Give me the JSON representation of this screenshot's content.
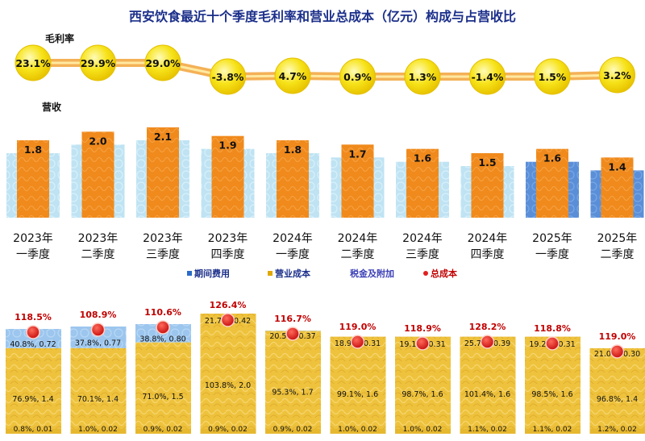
{
  "title": "西安饮食最近十个季度毛利率和营业总成本（亿元）构成与占营收比",
  "labels": {
    "margin": "毛利率",
    "revenue": "营收"
  },
  "legend": [
    {
      "label": "期间费用",
      "color": "#2a6cc7"
    },
    {
      "label": "营业成本",
      "color": "#e0a800"
    },
    {
      "label": "税金及附加",
      "color": "#3b3fb5"
    },
    {
      "label": "总成本",
      "color": "#e02020"
    }
  ],
  "colors": {
    "bubble": "#f7e31a",
    "bar_orange": "#f08a1c",
    "bar_back_light": "#bfe3f3",
    "bar_back_blue": "#5a8fd8",
    "cost_gold": "#eec23c",
    "cost_blue": "#9cc6ee",
    "total_red": "#d8201a",
    "label_red": "#c00000",
    "arrow": "#f2a33a"
  },
  "chart_data": {
    "type": "bar",
    "categories": [
      [
        "2023年",
        "一季度"
      ],
      [
        "2023年",
        "二季度"
      ],
      [
        "2023年",
        "三季度"
      ],
      [
        "2023年",
        "四季度"
      ],
      [
        "2024年",
        "一季度"
      ],
      [
        "2024年",
        "二季度"
      ],
      [
        "2024年",
        "三季度"
      ],
      [
        "2024年",
        "四季度"
      ],
      [
        "2025年",
        "一季度"
      ],
      [
        "2025年",
        "二季度"
      ]
    ],
    "gross_margin": [
      "23.1%",
      "29.9%",
      "29.0%",
      "-3.8%",
      "4.7%",
      "0.9%",
      "1.3%",
      "-1.4%",
      "1.5%",
      "3.2%"
    ],
    "revenue": [
      1.8,
      2.0,
      2.1,
      1.9,
      1.8,
      1.7,
      1.6,
      1.5,
      1.6,
      1.4
    ],
    "revenue_labels": [
      "1.8",
      "2.0",
      "2.1",
      "1.9",
      "1.8",
      "1.7",
      "1.6",
      "1.5",
      "1.6",
      "1.4"
    ],
    "total_cost_ratio": [
      "118.5%",
      "108.9%",
      "110.6%",
      "126.4%",
      "116.7%",
      "119.0%",
      "118.9%",
      "128.2%",
      "118.8%",
      "119.0%"
    ],
    "series": [
      {
        "name": "期间费用",
        "values": [
          0.72,
          0.77,
          0.8,
          0.42,
          0.37,
          0.31,
          0.31,
          0.39,
          0.31,
          0.3
        ],
        "labels": [
          "40.8%, 0.72",
          "37.8%, 0.77",
          "38.8%, 0.80",
          "21.7%, 0.42",
          "20.5%, 0.37",
          "18.9%, 0.31",
          "19.1%, 0.31",
          "25.7%, 0.39",
          "19.2%, 0.31",
          "21.0%, 0.30"
        ]
      },
      {
        "name": "营业成本",
        "values": [
          1.4,
          1.4,
          1.5,
          2.0,
          1.7,
          1.6,
          1.6,
          1.6,
          1.6,
          1.4
        ],
        "labels": [
          "76.9%, 1.4",
          "70.1%, 1.4",
          "71.0%, 1.5",
          "103.8%, 2.0",
          "95.3%, 1.7",
          "99.1%, 1.6",
          "98.7%, 1.6",
          "101.4%, 1.6",
          "98.5%, 1.6",
          "96.8%, 1.4"
        ]
      },
      {
        "name": "税金及附加",
        "values": [
          0.01,
          0.02,
          0.02,
          0.02,
          0.02,
          0.02,
          0.02,
          0.02,
          0.02,
          0.02
        ],
        "labels": [
          "0.8%, 0.01",
          "1.0%, 0.02",
          "0.9%, 0.02",
          "0.9%, 0.02",
          "0.9%, 0.02",
          "1.0%, 0.02",
          "1.0%, 0.02",
          "1.1%, 0.02",
          "1.1%, 0.02",
          "1.2%, 0.02"
        ]
      }
    ]
  }
}
